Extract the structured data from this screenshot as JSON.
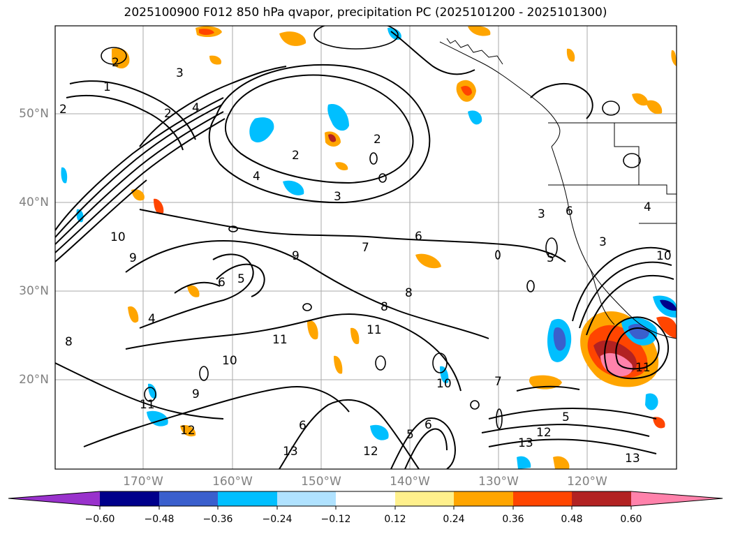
{
  "title": "2025100900 F012 850 hPa qvapor, precipitation PC (2025101200 - 2025101300)",
  "lat_labels": [
    "50°N",
    "40°N",
    "30°N",
    "20°N"
  ],
  "lon_labels": [
    "170°W",
    "160°W",
    "150°W",
    "140°W",
    "130°W",
    "120°W"
  ],
  "colorbar": {
    "ticks": [
      "−0.60",
      "−0.48",
      "−0.36",
      "−0.24",
      "−0.12",
      "0.12",
      "0.24",
      "0.36",
      "0.48",
      "0.60"
    ],
    "colors": [
      "#9932cc",
      "#00008b",
      "#3a5fcd",
      "#00bfff",
      "#b0e2ff",
      "#ffffff",
      "#fff08c",
      "#ffa500",
      "#ff4500",
      "#b22222",
      "#ff82ab"
    ]
  },
  "contour_labels": [
    "2",
    "3",
    "2",
    "1",
    "2",
    "4",
    "2",
    "2",
    "4",
    "3",
    "6",
    "7",
    "8",
    "10",
    "9",
    "9",
    "5",
    "6",
    "4",
    "8",
    "11",
    "10",
    "11",
    "12",
    "11",
    "9",
    "6",
    "13",
    "12",
    "7",
    "10",
    "13",
    "13",
    "12",
    "6",
    "5",
    "5",
    "3",
    "3",
    "6",
    "4",
    "8",
    "10",
    "11",
    "5"
  ]
}
